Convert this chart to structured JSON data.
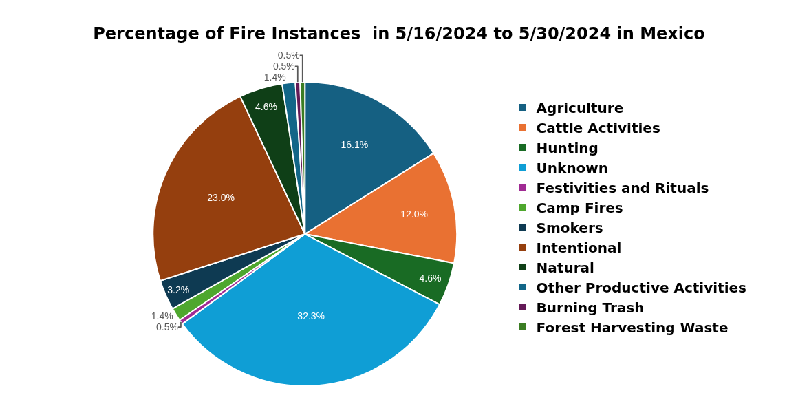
{
  "chart_data": {
    "type": "pie",
    "title": "Percentage of Fire Instances  in 5/16/2024 to 5/30/2024 in Mexico",
    "categories": [
      "Agriculture",
      "Cattle Activities",
      "Hunting",
      "Unknown",
      "Festivities and Rituals",
      "Camp Fires",
      "Smokers",
      "Intentional",
      "Natural",
      "Other Productive Activities",
      "Burning Trash",
      "Forest Harvesting Waste"
    ],
    "values": [
      16.1,
      12.0,
      4.6,
      32.3,
      0.5,
      1.4,
      3.2,
      23.0,
      4.6,
      1.4,
      0.5,
      0.5
    ],
    "value_labels": [
      "16.1%",
      "12.0%",
      "4.6%",
      "32.3%",
      "0.5%",
      "1.4%",
      "3.2%",
      "23.0%",
      "4.6%",
      "1.4%",
      "0.5%",
      "0.5%"
    ],
    "colors": [
      "#156082",
      "#e97132",
      "#196b24",
      "#0f9ed5",
      "#a02b93",
      "#4ea72e",
      "#0e3a52",
      "#953f0e",
      "#0f3f17",
      "#126688",
      "#641a57",
      "#3b7d23"
    ],
    "legend": "right"
  }
}
